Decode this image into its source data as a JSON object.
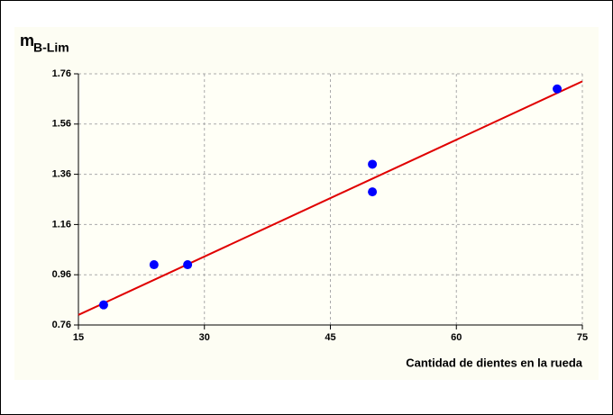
{
  "chart_data": {
    "type": "scatter",
    "ylabel": "m",
    "ylabel_sub": "B-Lim",
    "xlabel": "Cantidad de dientes en la rueda",
    "points": {
      "color": "#0000ff",
      "x": [
        18,
        24,
        28,
        50,
        50,
        72
      ],
      "values": [
        0.84,
        1.0,
        1.0,
        1.4,
        1.29,
        1.7
      ]
    },
    "fit_line": {
      "color": "#e00000",
      "x": [
        15,
        75
      ],
      "values": [
        0.8,
        1.73
      ]
    },
    "xlim": [
      15,
      75
    ],
    "xticks": [
      15,
      30,
      45,
      60,
      75
    ],
    "ylim": [
      0.76,
      1.76
    ],
    "yticks": [
      0.76,
      0.96,
      1.16,
      1.36,
      1.56,
      1.76
    ],
    "grid": true
  }
}
